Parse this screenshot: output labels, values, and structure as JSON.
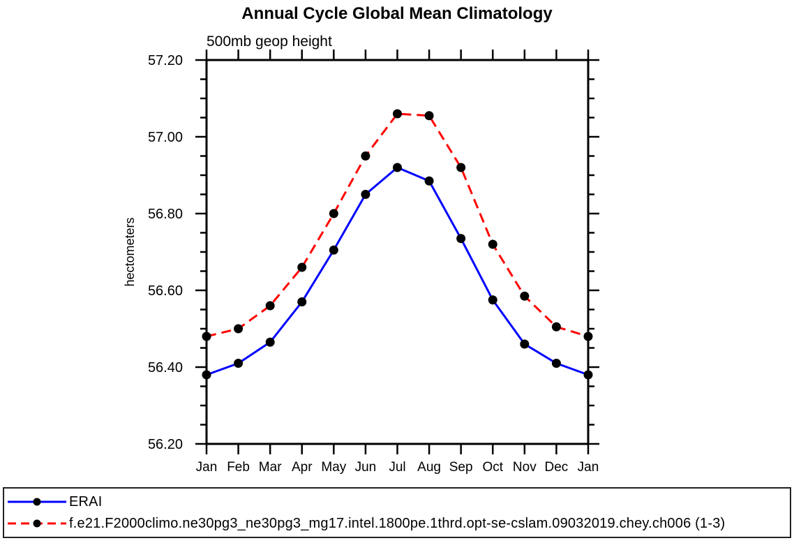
{
  "chart_data": {
    "type": "line",
    "title": "Annual Cycle Global Mean Climatology",
    "subtitle": "500mb geop height",
    "ylabel": "hectometers",
    "xlabel": "",
    "categories": [
      "Jan",
      "Feb",
      "Mar",
      "Apr",
      "May",
      "Jun",
      "Jul",
      "Aug",
      "Sep",
      "Oct",
      "Nov",
      "Dec",
      "Jan"
    ],
    "ylim": [
      56.2,
      57.2
    ],
    "ytick_major_interval": 0.2,
    "ytick_minor_interval": 0.05,
    "ytick_labels": [
      "56.20",
      "56.40",
      "56.60",
      "56.80",
      "57.00",
      "57.20"
    ],
    "grid": false,
    "legend_position": "bottom-outside",
    "frame_color": "#000000",
    "marker": "filled-circle",
    "marker_color": "#000000",
    "series": [
      {
        "name": "ERAI",
        "color": "#0000ff",
        "line_style": "solid",
        "values": [
          56.38,
          56.41,
          56.465,
          56.57,
          56.705,
          56.85,
          56.92,
          56.885,
          56.735,
          56.575,
          56.46,
          56.41,
          56.38
        ]
      },
      {
        "name": "f.e21.F2000climo.ne30pg3_ne30pg3_mg17.intel.1800pe.1thrd.opt-se-cslam.09032019.chey.ch006 (1-3)",
        "color": "#ff0000",
        "line_style": "dashed",
        "values": [
          56.48,
          56.5,
          56.56,
          56.66,
          56.8,
          56.95,
          57.06,
          57.055,
          56.92,
          56.72,
          56.585,
          56.505,
          56.48
        ]
      }
    ]
  }
}
